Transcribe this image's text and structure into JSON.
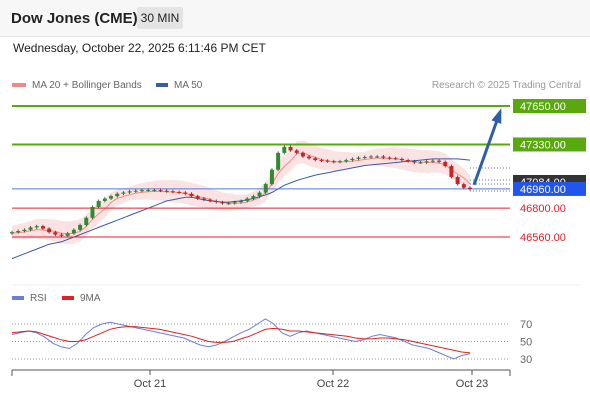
{
  "header": {
    "title": "Dow Jones (CME)",
    "timeframe": "30 MIN"
  },
  "datetime": "Wednesday, October 22, 2025 6:11:46 PM CET",
  "legend": {
    "ma20_label": "MA 20 + Bollinger Bands",
    "ma50_label": "MA 50",
    "ma20_color": "#f08a8a",
    "ma50_color": "#3a5ba8",
    "credit": "Research © 2025 Trading Central"
  },
  "rsi_legend": {
    "rsi_label": "RSI",
    "ma_label": "9MA",
    "rsi_color": "#6a7fd8",
    "ma_color": "#dd2222"
  },
  "chart_data": [
    {
      "type": "line",
      "subtype": "candlestick",
      "y_axis": "right",
      "ylim": [
        46310,
        47760
      ],
      "x_tick_labels": [
        "Oct 21",
        "Oct 22",
        "Oct 23"
      ],
      "current_price": {
        "value": 46960,
        "label": "46960.00",
        "color": "#2255ee"
      },
      "hidden_price_label": "47084.00",
      "levels": [
        {
          "value": 47650,
          "label": "47650.00",
          "kind": "resistance",
          "color": "#5aa80f"
        },
        {
          "value": 47330,
          "label": "47330.00",
          "kind": "resistance",
          "color": "#5aa80f"
        },
        {
          "value": 46800,
          "label": "46800.00",
          "kind": "support",
          "color": "#e0202a"
        },
        {
          "value": 46560,
          "label": "46560.00",
          "kind": "support",
          "color": "#e0202a"
        }
      ],
      "forecast_arrow": {
        "from": 46960,
        "to": 47650,
        "color": "#2e5ea8"
      },
      "price_path": [
        46600,
        46610,
        46620,
        46640,
        46650,
        46630,
        46600,
        46580,
        46570,
        46590,
        46620,
        46660,
        46720,
        46810,
        46860,
        46880,
        46900,
        46920,
        46930,
        46940,
        46945,
        46950,
        46950,
        46950,
        46945,
        46940,
        46935,
        46930,
        46920,
        46900,
        46880,
        46870,
        46860,
        46850,
        46840,
        46840,
        46850,
        46860,
        46880,
        46900,
        46930,
        47000,
        47120,
        47260,
        47310,
        47280,
        47260,
        47230,
        47215,
        47200,
        47195,
        47190,
        47185,
        47190,
        47200,
        47210,
        47220,
        47225,
        47230,
        47230,
        47220,
        47215,
        47210,
        47200,
        47190,
        47180,
        47180,
        47190,
        47195,
        47185,
        47150,
        47060,
        47000,
        46970,
        46960
      ],
      "ma50_path": [
        46380,
        46400,
        46420,
        46440,
        46460,
        46480,
        46500,
        46510,
        46520,
        46540,
        46560,
        46580,
        46600,
        46620,
        46640,
        46660,
        46680,
        46700,
        46720,
        46740,
        46760,
        46780,
        46800,
        46820,
        46840,
        46860,
        46870,
        46880,
        46890,
        46890,
        46880,
        46870,
        46860,
        46855,
        46850,
        46850,
        46855,
        46860,
        46870,
        46880,
        46895,
        46910,
        46930,
        46960,
        46990,
        47010,
        47030,
        47045,
        47060,
        47075,
        47085,
        47095,
        47105,
        47115,
        47125,
        47135,
        47145,
        47155,
        47160,
        47165,
        47170,
        47175,
        47180,
        47185,
        47190,
        47195,
        47200,
        47205,
        47210,
        47210,
        47210,
        47210,
        47210,
        47205,
        47200
      ]
    },
    {
      "type": "line",
      "title": "RSI",
      "ylim": [
        22,
        80
      ],
      "y_ticks": [
        70,
        50,
        30
      ],
      "series": [
        {
          "name": "RSI",
          "values": [
            58,
            60,
            62,
            60,
            55,
            48,
            44,
            42,
            48,
            58,
            66,
            70,
            72,
            70,
            68,
            66,
            64,
            62,
            60,
            58,
            56,
            54,
            50,
            46,
            44,
            46,
            50,
            55,
            60,
            64,
            70,
            76,
            70,
            60,
            56,
            60,
            62,
            60,
            58,
            56,
            54,
            52,
            50,
            52,
            56,
            58,
            56,
            54,
            50,
            46,
            44,
            42,
            38,
            34,
            30,
            34,
            36
          ]
        },
        {
          "name": "9MA",
          "values": [
            60,
            61,
            62,
            61,
            58,
            55,
            52,
            50,
            50,
            52,
            56,
            60,
            64,
            66,
            67,
            67,
            66,
            65,
            64,
            62,
            60,
            58,
            56,
            53,
            50,
            49,
            49,
            50,
            53,
            56,
            60,
            64,
            65,
            64,
            62,
            62,
            61,
            60,
            59,
            58,
            57,
            56,
            54,
            53,
            53,
            54,
            54,
            53,
            52,
            50,
            48,
            46,
            44,
            42,
            40,
            38,
            37
          ]
        }
      ]
    }
  ]
}
